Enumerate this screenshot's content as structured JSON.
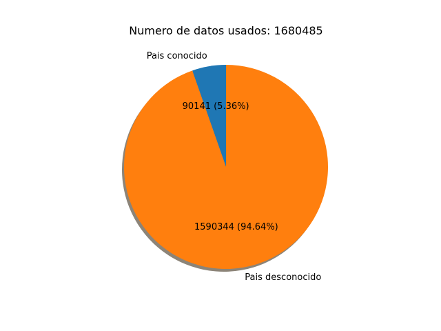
{
  "chart_data": {
    "type": "pie",
    "title": "Numero de datos usados: 1680485",
    "shadow": true,
    "start_angle_deg": 90,
    "direction": "counterclockwise",
    "slices": [
      {
        "label": "Pais conocido",
        "value": 90141,
        "percent_label": "90141 (5.36%)",
        "color": "#1f77b4"
      },
      {
        "label": "Pais desconocido",
        "value": 1590344,
        "percent_label": "1590344 (94.64%)",
        "color": "#ff7f0e"
      }
    ]
  },
  "colors": {
    "background": "#ffffff",
    "shadow": "#8c8478"
  }
}
